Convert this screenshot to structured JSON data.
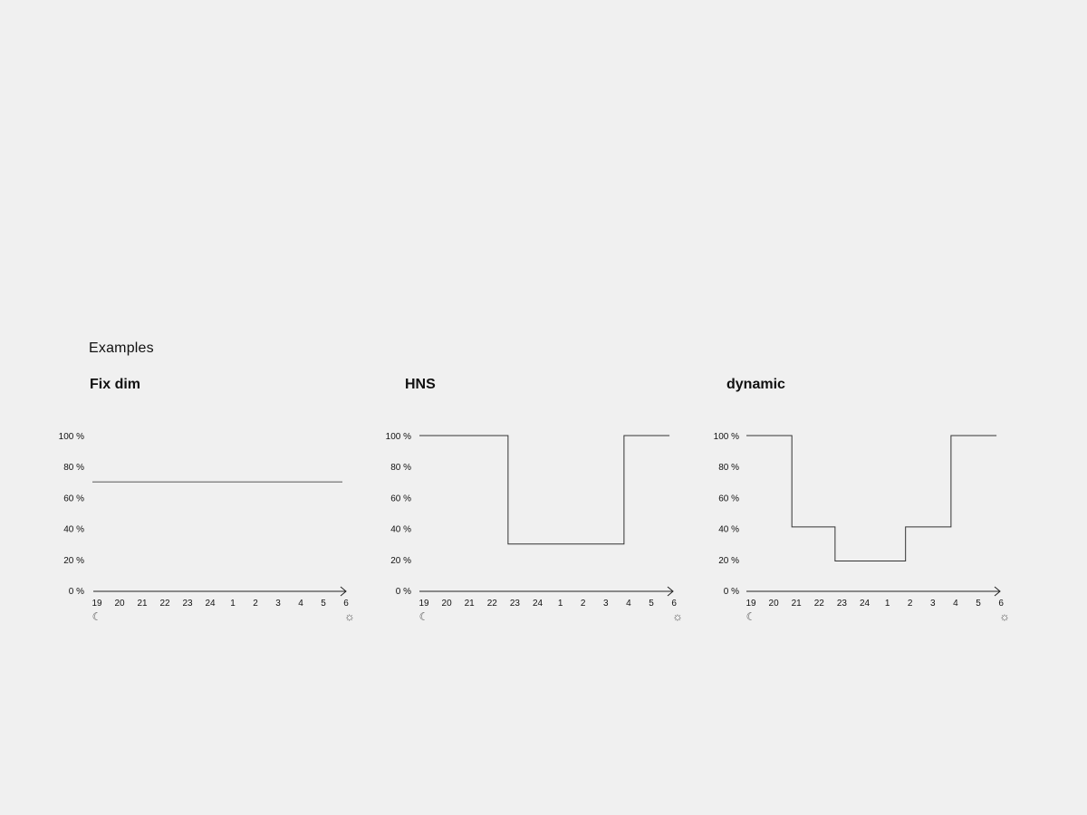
{
  "page": {
    "section_title": "Examples"
  },
  "chart_data": [
    {
      "type": "line",
      "title": "Fix dim",
      "x": [
        "19",
        "20",
        "21",
        "22",
        "23",
        "24",
        "1",
        "2",
        "3",
        "4",
        "5",
        "6"
      ],
      "y_ticks": [
        "100 %",
        "80 %",
        "60 %",
        "40 %",
        "20 %",
        "0 %"
      ],
      "ylim": [
        0,
        100
      ],
      "start_icon": "☾",
      "end_icon": "☼",
      "line_color": "#8a8a8a",
      "segments": [
        {
          "from": "19",
          "to": "6",
          "value": 70
        }
      ]
    },
    {
      "type": "line",
      "title": "HNS",
      "x": [
        "19",
        "20",
        "21",
        "22",
        "23",
        "24",
        "1",
        "2",
        "3",
        "4",
        "5",
        "6"
      ],
      "y_ticks": [
        "100 %",
        "80 %",
        "60 %",
        "40 %",
        "20 %",
        "0 %"
      ],
      "ylim": [
        0,
        100
      ],
      "start_icon": "☾",
      "end_icon": "☼",
      "line_color": "#333333",
      "segments": [
        {
          "from": "19",
          "to": "22.7",
          "value": 100
        },
        {
          "from": "22.7",
          "to": "3.8",
          "value": 30
        },
        {
          "from": "3.8",
          "to": "5.8",
          "value": 100
        }
      ]
    },
    {
      "type": "line",
      "title": "dynamic",
      "x": [
        "19",
        "20",
        "21",
        "22",
        "23",
        "24",
        "1",
        "2",
        "3",
        "4",
        "5",
        "6"
      ],
      "y_ticks": [
        "100 %",
        "80 %",
        "60 %",
        "40 %",
        "20 %",
        "0 %"
      ],
      "ylim": [
        0,
        100
      ],
      "start_icon": "☾",
      "end_icon": "☼",
      "line_color": "#333333",
      "segments": [
        {
          "from": "19",
          "to": "20.8",
          "value": 100
        },
        {
          "from": "20.8",
          "to": "22.7",
          "value": 41
        },
        {
          "from": "22.7",
          "to": "1.8",
          "value": 19
        },
        {
          "from": "1.8",
          "to": "3.8",
          "value": 41
        },
        {
          "from": "3.8",
          "to": "5.8",
          "value": 100
        }
      ]
    }
  ]
}
